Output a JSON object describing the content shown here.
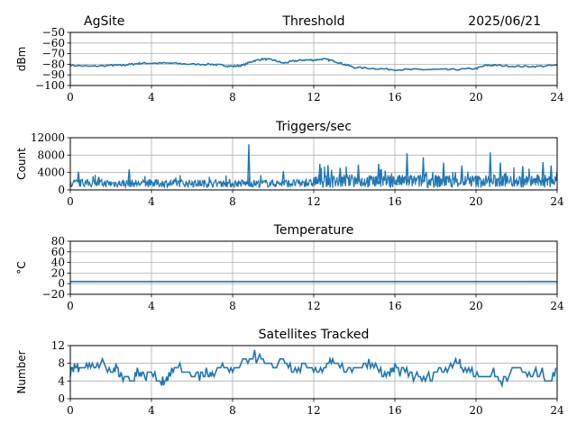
{
  "header": {
    "site": "AgSite",
    "date": "2025/06/21"
  },
  "series_color": "#1f77b4",
  "chart_data": [
    {
      "type": "line",
      "title": "Threshold",
      "ylabel": "dBm",
      "xlim": [
        0,
        24
      ],
      "ylim": [
        -100,
        -50
      ],
      "xticks": [
        0,
        4,
        8,
        12,
        16,
        20,
        24
      ],
      "yticks": [
        -50,
        -60,
        -70,
        -80,
        -90,
        -100
      ],
      "ytick_labels": [
        "−50",
        "−60",
        "−70",
        "−80",
        "−90",
        "−100"
      ],
      "grid": true,
      "series": [
        {
          "x": [
            0,
            1,
            2,
            2.5,
            3,
            3.5,
            4,
            5,
            6,
            7,
            7.5,
            8,
            8.5,
            9,
            9.5,
            10,
            10.5,
            11,
            11.5,
            12,
            12.5,
            13,
            13.5,
            14,
            15,
            16,
            17,
            18,
            19,
            20,
            20.5,
            21,
            22,
            23,
            24
          ],
          "y": [
            -81,
            -82,
            -81,
            -81,
            -80,
            -79,
            -79,
            -79,
            -80,
            -80,
            -81,
            -82,
            -81,
            -77,
            -75,
            -76,
            -79,
            -77,
            -76,
            -76,
            -75,
            -77,
            -80,
            -83,
            -84,
            -85,
            -85,
            -85,
            -85,
            -84,
            -81,
            -81,
            -82,
            -82,
            -81
          ]
        }
      ]
    },
    {
      "type": "line",
      "title": "Triggers/sec",
      "ylabel": "Count",
      "xlim": [
        0,
        24
      ],
      "ylim": [
        0,
        12000
      ],
      "xticks": [
        0,
        4,
        8,
        12,
        16,
        20,
        24
      ],
      "yticks": [
        0,
        4000,
        8000,
        12000
      ],
      "ytick_labels": [
        "0",
        "4000",
        "8000",
        "12000"
      ],
      "grid": true,
      "baseline": {
        "before_12": 1500,
        "after_12": 2000
      },
      "spikes": [
        {
          "x": 0.4,
          "y": 4200
        },
        {
          "x": 1.4,
          "y": 3000
        },
        {
          "x": 2.9,
          "y": 4700
        },
        {
          "x": 5.2,
          "y": 2600
        },
        {
          "x": 8.8,
          "y": 10500
        },
        {
          "x": 10.5,
          "y": 4300
        },
        {
          "x": 12.3,
          "y": 6000
        },
        {
          "x": 12.7,
          "y": 5700
        },
        {
          "x": 13.3,
          "y": 5100
        },
        {
          "x": 14.2,
          "y": 5800
        },
        {
          "x": 15.2,
          "y": 6000
        },
        {
          "x": 16.6,
          "y": 8400
        },
        {
          "x": 17.4,
          "y": 7500
        },
        {
          "x": 18.4,
          "y": 6300
        },
        {
          "x": 19.3,
          "y": 5600
        },
        {
          "x": 20.7,
          "y": 8600
        },
        {
          "x": 21.2,
          "y": 6300
        },
        {
          "x": 22.3,
          "y": 5500
        },
        {
          "x": 23.3,
          "y": 6400
        },
        {
          "x": 23.7,
          "y": 5600
        }
      ]
    },
    {
      "type": "line",
      "title": "Temperature",
      "ylabel": "°C",
      "xlim": [
        0,
        24
      ],
      "ylim": [
        -20,
        80
      ],
      "xticks": [
        0,
        4,
        8,
        12,
        16,
        20,
        24
      ],
      "yticks": [
        80,
        60,
        40,
        20,
        0,
        -20
      ],
      "ytick_labels": [
        "80",
        "60",
        "40",
        "20",
        "0",
        "−20"
      ],
      "grid": true,
      "series": [
        {
          "x": [
            0,
            24
          ],
          "y": [
            4,
            4
          ]
        }
      ]
    },
    {
      "type": "line",
      "title": "Satellites Tracked",
      "ylabel": "Number",
      "xlim": [
        0,
        24
      ],
      "ylim": [
        0,
        12
      ],
      "xticks": [
        0,
        4,
        8,
        12,
        16,
        20,
        24
      ],
      "yticks": [
        0,
        4,
        8,
        12
      ],
      "ytick_labels": [
        "0",
        "4",
        "8",
        "12"
      ],
      "grid": true,
      "series": [
        {
          "x": [
            0,
            0.3,
            0.6,
            1.0,
            1.5,
            2.0,
            2.3,
            2.6,
            3.0,
            3.3,
            3.6,
            4.0,
            4.5,
            4.8,
            5.2,
            5.8,
            6.3,
            6.7,
            7.0,
            7.5,
            8.0,
            8.5,
            9.0,
            9.5,
            10.0,
            10.5,
            11.0,
            11.5,
            12.0,
            12.5,
            12.8,
            13.2,
            13.8,
            14.3,
            14.8,
            15.3,
            15.7,
            16.0,
            16.5,
            17.0,
            17.5,
            18.0,
            18.5,
            19.0,
            19.3,
            19.8,
            20.3,
            20.8,
            21.2,
            21.7,
            22.2,
            22.7,
            23.2,
            23.6,
            24.0
          ],
          "y": [
            6,
            7,
            8,
            7,
            8,
            6,
            7,
            5,
            4,
            6,
            5,
            6,
            4,
            5,
            7,
            6,
            5,
            6,
            5,
            7,
            6,
            8,
            10,
            8,
            7,
            9,
            6,
            7,
            6,
            7,
            9,
            7,
            6,
            7,
            8,
            6,
            5,
            7,
            6,
            5,
            4,
            6,
            7,
            9,
            7,
            6,
            5,
            6,
            4,
            6,
            7,
            5,
            6,
            4,
            6
          ]
        }
      ]
    }
  ]
}
